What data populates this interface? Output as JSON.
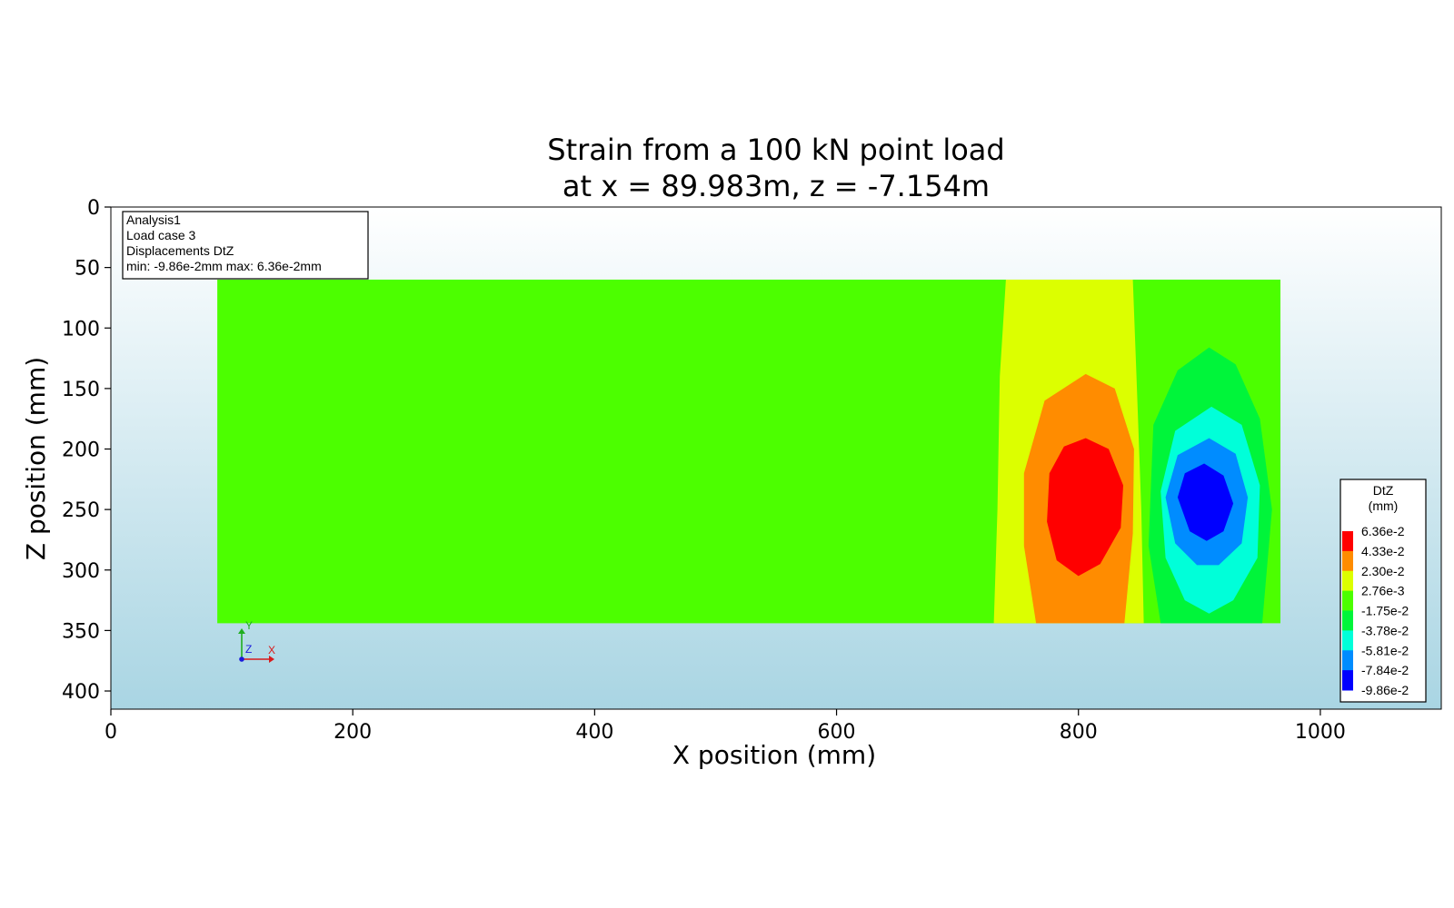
{
  "chart_data": {
    "type": "heatmap",
    "title_lines": [
      "Strain from a 100 kN point load",
      "at x = 89.983m, z = -7.154m"
    ],
    "xlabel": "X position (mm)",
    "ylabel": "Z position (mm)",
    "xlim": [
      0,
      1100
    ],
    "ylim": [
      415,
      0
    ],
    "x_ticks": [
      0,
      200,
      400,
      600,
      800,
      1000
    ],
    "y_ticks": [
      0,
      50,
      100,
      150,
      200,
      250,
      300,
      350,
      400
    ],
    "domain": {
      "x": [
        88,
        967
      ],
      "z": [
        60,
        344
      ]
    },
    "info_box": [
      "Analysis1",
      "Load case 3",
      "Displacements DtZ",
      "min: -9.86e-2mm max:  6.36e-2mm"
    ],
    "legend": {
      "title_lines": [
        "DtZ",
        "(mm)"
      ],
      "labels": [
        "6.36e-2",
        "4.33e-2",
        "2.30e-2",
        "2.76e-3",
        "-1.75e-2",
        "-3.78e-2",
        "-5.81e-2",
        "-7.84e-2",
        "-9.86e-2"
      ],
      "colors": [
        "#ff0000",
        "#ff8c00",
        "#dcff00",
        "#4cff00",
        "#00f53a",
        "#00ffd9",
        "#008cff",
        "#0000ff"
      ]
    },
    "contours": [
      {
        "band": "2.76e-3 to 2.30e-2",
        "color": "#dcff00",
        "points": [
          [
            740,
            60
          ],
          [
            845,
            60
          ],
          [
            848,
            140
          ],
          [
            852,
            250
          ],
          [
            854,
            344
          ],
          [
            730,
            344
          ],
          [
            733,
            250
          ],
          [
            735,
            140
          ]
        ]
      },
      {
        "band": "2.30e-2 to 4.33e-2",
        "color": "#ff8c00",
        "points": [
          [
            806,
            138
          ],
          [
            830,
            150
          ],
          [
            846,
            200
          ],
          [
            845,
            270
          ],
          [
            838,
            344
          ],
          [
            765,
            344
          ],
          [
            755,
            280
          ],
          [
            755,
            220
          ],
          [
            772,
            160
          ]
        ]
      },
      {
        "band": "4.33e-2 to 6.36e-2",
        "color": "#ff0000",
        "points": [
          [
            806,
            191
          ],
          [
            825,
            200
          ],
          [
            837,
            230
          ],
          [
            835,
            265
          ],
          [
            818,
            295
          ],
          [
            800,
            305
          ],
          [
            782,
            292
          ],
          [
            774,
            260
          ],
          [
            776,
            220
          ],
          [
            788,
            198
          ]
        ]
      },
      {
        "band": "-3.78e-2 to -1.75e-2",
        "color": "#00f53a",
        "points": [
          [
            908,
            116
          ],
          [
            930,
            130
          ],
          [
            950,
            175
          ],
          [
            960,
            250
          ],
          [
            952,
            344
          ],
          [
            868,
            344
          ],
          [
            858,
            280
          ],
          [
            862,
            180
          ],
          [
            882,
            135
          ]
        ]
      },
      {
        "band": "-5.81e-2 to -3.78e-2",
        "color": "#00ffd9",
        "points": [
          [
            910,
            165
          ],
          [
            935,
            180
          ],
          [
            950,
            230
          ],
          [
            948,
            290
          ],
          [
            928,
            325
          ],
          [
            908,
            336
          ],
          [
            888,
            325
          ],
          [
            872,
            290
          ],
          [
            868,
            235
          ],
          [
            880,
            185
          ]
        ]
      },
      {
        "band": "-7.84e-2 to -5.81e-2",
        "color": "#008cff",
        "points": [
          [
            908,
            191
          ],
          [
            930,
            204
          ],
          [
            940,
            240
          ],
          [
            935,
            278
          ],
          [
            916,
            296
          ],
          [
            898,
            296
          ],
          [
            880,
            278
          ],
          [
            872,
            240
          ],
          [
            882,
            205
          ]
        ]
      },
      {
        "band": "-9.86e-2 to -7.84e-2",
        "color": "#0000ff",
        "points": [
          [
            904,
            212
          ],
          [
            920,
            222
          ],
          [
            928,
            245
          ],
          [
            920,
            268
          ],
          [
            906,
            276
          ],
          [
            892,
            268
          ],
          [
            882,
            240
          ],
          [
            888,
            220
          ]
        ]
      }
    ]
  },
  "triad": {
    "x": "X",
    "y": "Y",
    "z": "Z"
  }
}
